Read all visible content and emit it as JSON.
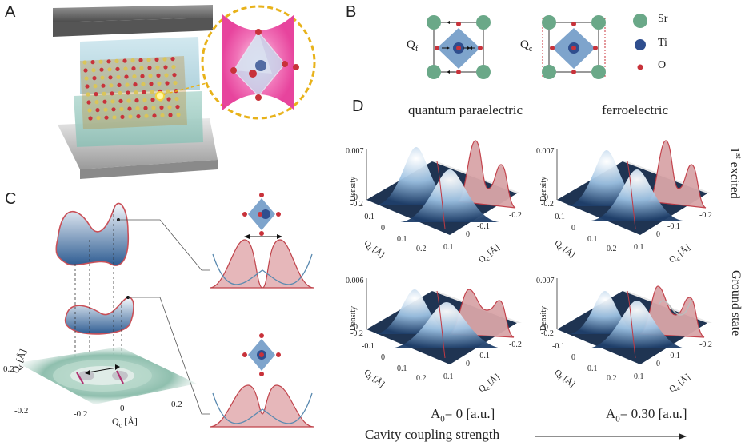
{
  "panels": {
    "a": "A",
    "b": "B",
    "c": "C",
    "d": "D"
  },
  "legend": {
    "sr": "Sr",
    "ti": "Ti",
    "o": "O"
  },
  "modes": {
    "qf": "Q",
    "qf_sub": "f",
    "qc": "Q",
    "qc_sub": "c"
  },
  "columns": {
    "left": "quantum paraelectric",
    "right": "ferroelectric"
  },
  "rows": {
    "top_pre": "1",
    "top_sup": "st",
    "top_post": " excited",
    "bottom": "Ground state"
  },
  "axis_labels": {
    "density": "Density",
    "qf": "Q",
    "qf_sub": "f",
    "qf_unit": " [Å]",
    "qc": "Q",
    "qc_sub": "c",
    "qc_unit": " [Å]"
  },
  "ticks": {
    "m02": "-0.2",
    "m01": "-0.1",
    "zero": "0",
    "p01": "0.1",
    "p02": "0.2"
  },
  "density_max": {
    "tl": "0.007",
    "tr": "0.007",
    "bl": "0.006",
    "br": "0.007",
    "zero": "0"
  },
  "coupling": {
    "left_pre": "A",
    "left_sub": "0",
    "left_post": "= 0 [a.u.]",
    "right_pre": "A",
    "right_sub": "0",
    "right_post": "= 0.30 [a.u.]"
  },
  "cavity_label": "Cavity coupling strength",
  "c_axes": {
    "qf": "Q",
    "qf_sub": "f",
    "qf_unit": " [Å]",
    "qc": "Q",
    "qc_sub": "c",
    "qc_unit": " [Å]"
  },
  "colors": {
    "sr": "#6aa888",
    "ti": "#2f4e8e",
    "o": "#c8323a",
    "octa": "#7ea4cc",
    "surface_dark": "#1e3350",
    "proj": "#d9a5a8",
    "proj_edge": "#c03a44",
    "cavity": "#e94ba0",
    "gold": "#e8b21a"
  }
}
